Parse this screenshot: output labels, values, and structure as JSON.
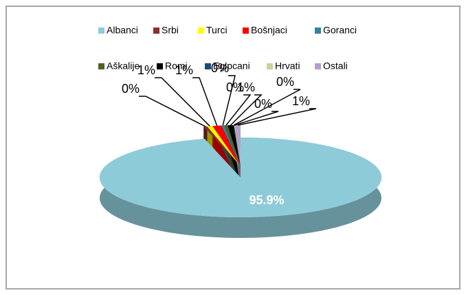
{
  "chart_data": {
    "type": "pie",
    "categories": [
      "Albanci",
      "Srbi",
      "Turci",
      "Bošnjaci",
      "Goranci",
      "Aškalije",
      "Romi",
      "Egipcani",
      "Hrvati",
      "Ostali"
    ],
    "values": [
      95.9,
      0.4,
      0.6,
      1.0,
      0.3,
      0.4,
      0.6,
      0.1,
      0.1,
      0.6
    ],
    "value_labels": [
      "95.9%",
      "0%",
      "1%",
      "1%",
      "0%",
      "0%",
      "1%",
      "0%",
      "0%",
      "1%"
    ],
    "colors": [
      "#8ecbd8",
      "#8b2e2e",
      "#ffff00",
      "#ff0000",
      "#31859c",
      "#4f6228",
      "#000000",
      "#1f497d",
      "#c3d69b",
      "#b3a2c7"
    ]
  }
}
